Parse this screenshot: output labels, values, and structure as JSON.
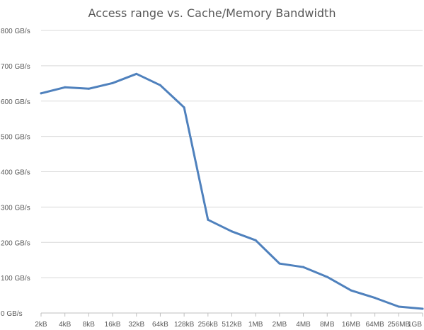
{
  "chart_data": {
    "type": "line",
    "title": "Access range vs. Cache/Memory Bandwidth",
    "xlabel": "",
    "ylabel": "",
    "categories": [
      "2kB",
      "4kB",
      "8kB",
      "16kB",
      "32kB",
      "64kB",
      "128kB",
      "256kB",
      "512kB",
      "1MB",
      "2MB",
      "4MB",
      "8MB",
      "16MB",
      "64MB",
      "256MB",
      "1GB"
    ],
    "x_tick_labels": [
      "2kB",
      "4kB",
      "8kB",
      "16kB",
      "32kB",
      "64kB",
      "128kB",
      "256kB",
      "512kB",
      "1MB",
      "2MB",
      "4MB",
      "8MB",
      "16MB",
      "64MB",
      "256MB",
      "1GB"
    ],
    "series": [
      {
        "values": [
          622,
          639,
          635,
          651,
          677,
          645,
          582,
          264,
          231,
          206,
          140,
          130,
          102,
          64,
          43,
          18,
          12
        ]
      }
    ],
    "ylim": [
      0,
      800
    ],
    "y_ticks": [
      0,
      100,
      200,
      300,
      400,
      500,
      600,
      700,
      800
    ],
    "y_tick_labels": [
      "0 GB/s",
      "100 GB/s",
      "200 GB/s",
      "300 GB/s",
      "400 GB/s",
      "500 GB/s",
      "600 GB/s",
      "700 GB/s",
      "800 GB/s"
    ],
    "grid": "horizontal",
    "legend": "none",
    "colors": {
      "line": "#4f81bd",
      "grid": "#d9d9d9",
      "axis": "#bfbfbf",
      "text": "#595959"
    }
  }
}
